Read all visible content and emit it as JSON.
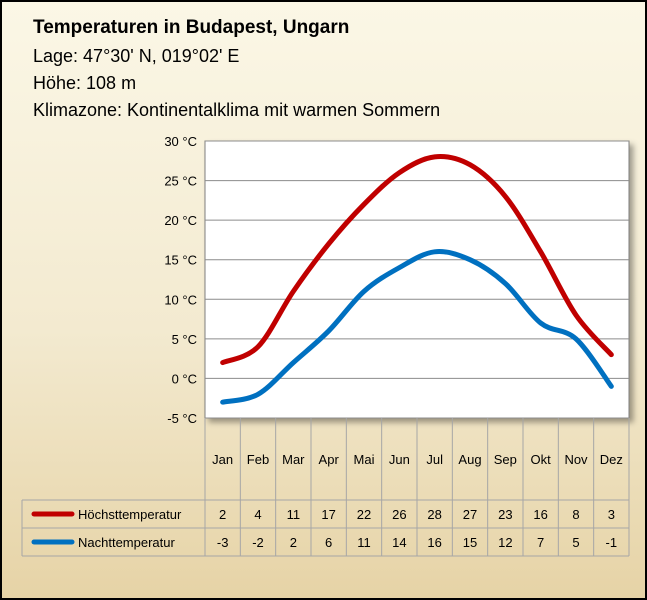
{
  "header": {
    "title": "Temperaturen in Budapest, Ungarn",
    "location": "Lage: 47°30' N, 019°02' E",
    "altitude": "Höhe: 108 m",
    "climate": "Klimazone: Kontinentalklima mit warmen Sommern"
  },
  "chart_data": {
    "type": "line",
    "title": "Temperaturen in Budapest, Ungarn",
    "categories": [
      "Jan",
      "Feb",
      "Mar",
      "Apr",
      "Mai",
      "Jun",
      "Jul",
      "Aug",
      "Sep",
      "Okt",
      "Nov",
      "Dez"
    ],
    "series": [
      {
        "name": "Höchsttemperatur",
        "color": "#c00000",
        "values": [
          2,
          4,
          11,
          17,
          22,
          26,
          28,
          27,
          23,
          16,
          8,
          3
        ]
      },
      {
        "name": "Nachttemperatur",
        "color": "#0070c0",
        "values": [
          -3,
          -2,
          2,
          6,
          11,
          14,
          16,
          15,
          12,
          7,
          5,
          -1
        ]
      }
    ],
    "ylim": [
      -5,
      30
    ],
    "yticks": [
      30,
      25,
      20,
      15,
      10,
      5,
      0,
      -5
    ],
    "ytick_labels": [
      "30 °C",
      "25 °C",
      "20 °C",
      "15 °C",
      "10 °C",
      "5 °C",
      "0 °C",
      "-5 °C"
    ],
    "grid": true,
    "legend": "data table below chart"
  }
}
